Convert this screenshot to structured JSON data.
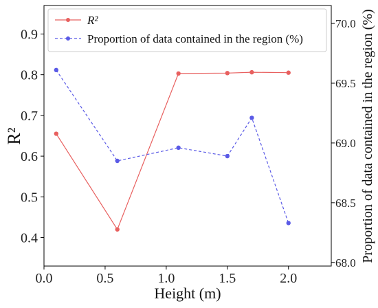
{
  "chart_data": {
    "type": "line",
    "x": [
      0.1,
      0.6,
      1.1,
      1.5,
      1.7,
      2.0
    ],
    "xlabel": "Height (m)",
    "xlim": [
      0.0,
      2.35
    ],
    "xticks": [
      "0.0",
      "0.5",
      "1.0",
      "1.5",
      "2.0"
    ],
    "ylabel_left": "R²",
    "ylim_left": [
      0.33,
      0.97
    ],
    "yticks_left": [
      "0.4",
      "0.5",
      "0.6",
      "0.7",
      "0.8",
      "0.9"
    ],
    "ylabel_right": "Proportion of data contained in the region (%)",
    "ylim_right": [
      67.97,
      70.15
    ],
    "yticks_right": [
      "68.0",
      "68.5",
      "69.0",
      "69.5",
      "70.0"
    ],
    "grid": false,
    "legend_position": "top-left",
    "series": [
      {
        "name": "R²",
        "axis": "left",
        "color": "#e8605f",
        "line_style": "solid",
        "values": [
          0.655,
          0.42,
          0.803,
          0.804,
          0.806,
          0.805
        ]
      },
      {
        "name": "Proportion of data contained in the region (%)",
        "axis": "right",
        "color": "#5a5ae6",
        "line_style": "dashed",
        "values": [
          69.61,
          68.85,
          68.96,
          68.89,
          69.21,
          68.33
        ]
      }
    ]
  }
}
